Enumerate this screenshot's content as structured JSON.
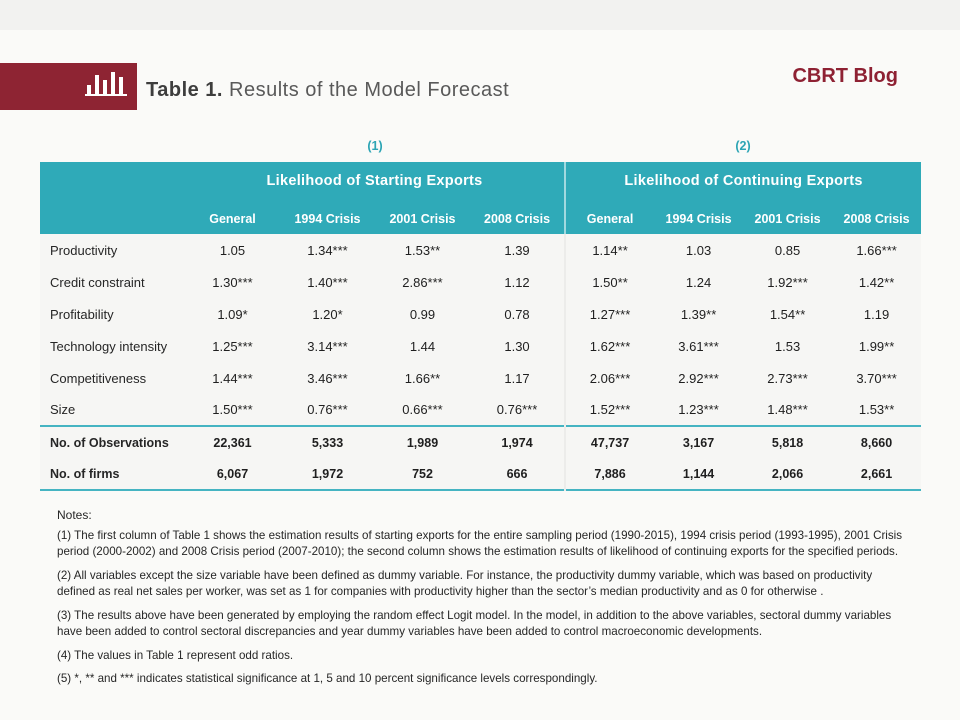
{
  "page": {
    "brand": "CBRT Blog",
    "title_bold": "Table 1.",
    "title_rest": "Results of the Model Forecast"
  },
  "colors": {
    "brand_red": "#8e2433",
    "accent_teal": "#2faab8"
  },
  "refs": {
    "group1": "(1)",
    "group2": "(2)"
  },
  "chart_data": {
    "type": "table",
    "title": "Table 1. Results of the Model Forecast",
    "column_groups": [
      {
        "ref": "(1)",
        "title": "Likelihood of Starting Exports",
        "columns": [
          "General",
          "1994 Crisis",
          "2001 Crisis",
          "2008 Crisis"
        ]
      },
      {
        "ref": "(2)",
        "title": "Likelihood of Continuing Exports",
        "columns": [
          "General",
          "1994 Crisis",
          "2001 Crisis",
          "2008 Crisis"
        ]
      }
    ],
    "rows": [
      {
        "label": "Productivity",
        "values": [
          "1.05",
          "1.34***",
          "1.53**",
          "1.39",
          "1.14**",
          "1.03",
          "0.85",
          "1.66***"
        ]
      },
      {
        "label": "Credit constraint",
        "values": [
          "1.30***",
          "1.40***",
          "2.86***",
          "1.12",
          "1.50**",
          "1.24",
          "1.92***",
          "1.42**"
        ]
      },
      {
        "label": "Profitability",
        "values": [
          "1.09*",
          "1.20*",
          "0.99",
          "0.78",
          "1.27***",
          "1.39**",
          "1.54**",
          "1.19"
        ]
      },
      {
        "label": "Technology intensity",
        "values": [
          "1.25***",
          "3.14***",
          "1.44",
          "1.30",
          "1.62***",
          "3.61***",
          "1.53",
          "1.99**"
        ]
      },
      {
        "label": "Competitiveness",
        "values": [
          "1.44***",
          "3.46***",
          "1.66**",
          "1.17",
          "2.06***",
          "2.92***",
          "2.73***",
          "3.70***"
        ]
      },
      {
        "label": "Size",
        "values": [
          "1.50***",
          "0.76***",
          "0.66***",
          "0.76***",
          "1.52***",
          "1.23***",
          "1.48***",
          "1.53**"
        ]
      }
    ],
    "summary_rows": [
      {
        "label": "No. of Observations",
        "values": [
          "22,361",
          "5,333",
          "1,989",
          "1,974",
          "47,737",
          "3,167",
          "5,818",
          "8,660"
        ]
      },
      {
        "label": "No. of firms",
        "values": [
          "6,067",
          "1,972",
          "752",
          "666",
          "7,886",
          "1,144",
          "2,066",
          "2,661"
        ]
      }
    ]
  },
  "notes": {
    "title": "Notes:",
    "items": [
      "(1) The first column of Table 1 shows the estimation results of starting exports for the entire sampling period (1990-2015), 1994 crisis period (1993-1995), 2001 Crisis period (2000-2002) and 2008 Crisis period (2007-2010); the second column shows the estimation results of likelihood of continuing exports for the specified periods.",
      "(2) All variables except the size variable have been defined as dummy variable. For instance, the productivity dummy variable, which was based on productivity defined as real net sales per worker, was set as 1 for companies with productivity higher than the sector’s median productivity and as 0 for otherwise .",
      "(3) The results above have been generated by employing the random effect Logit model. In the model, in addition to the above variables, sectoral dummy variables have been added to control sectoral discrepancies and year dummy variables have been added to control macroeconomic developments.",
      "(4) The values in Table 1 represent odd ratios.",
      "(5) *, ** and *** indicates statistical significance at 1, 5 and 10 percent significance levels correspondingly."
    ]
  }
}
